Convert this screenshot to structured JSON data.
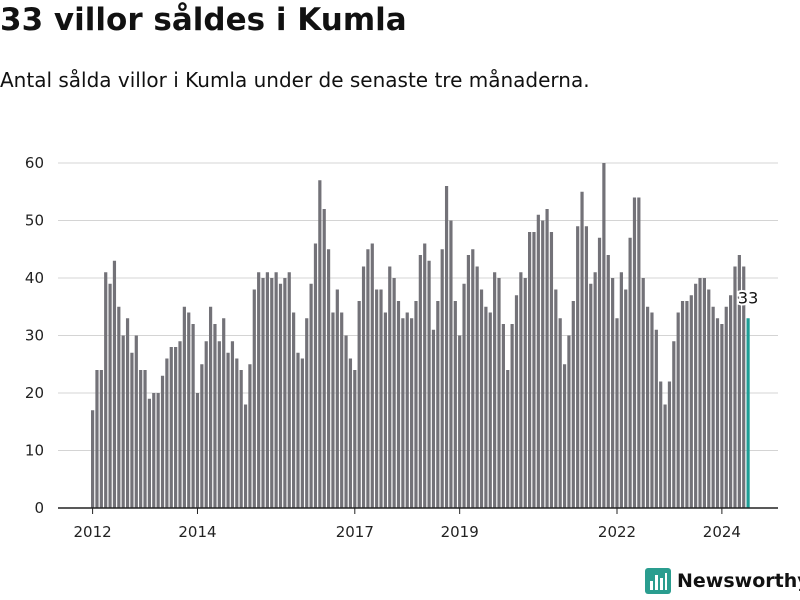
{
  "title": "33 villor såldes i Kumla",
  "subtitle": "Antal sålda villor i Kumla under de senaste tre månaderna.",
  "brand": {
    "name": "Newsworthy",
    "icon": "newsworthy-logo-icon",
    "color": "#2a9d8f"
  },
  "colors": {
    "bar": "#737278",
    "highlight": "#1f9e96",
    "grid": "#d4d4d4",
    "axis": "#222222"
  },
  "chart_data": {
    "type": "bar",
    "x_start": "2012-01",
    "interval": "month",
    "values": [
      17,
      24,
      24,
      41,
      39,
      43,
      35,
      30,
      33,
      27,
      30,
      24,
      24,
      19,
      20,
      20,
      23,
      26,
      28,
      28,
      29,
      35,
      34,
      32,
      20,
      25,
      29,
      35,
      32,
      29,
      33,
      27,
      29,
      26,
      24,
      18,
      25,
      38,
      41,
      40,
      41,
      40,
      41,
      39,
      40,
      41,
      34,
      27,
      26,
      33,
      39,
      46,
      57,
      52,
      45,
      34,
      38,
      34,
      30,
      26,
      24,
      36,
      42,
      45,
      46,
      38,
      38,
      34,
      42,
      40,
      36,
      33,
      34,
      33,
      36,
      44,
      46,
      43,
      31,
      36,
      45,
      56,
      50,
      36,
      30,
      39,
      44,
      45,
      42,
      38,
      35,
      34,
      41,
      40,
      32,
      24,
      32,
      37,
      41,
      40,
      48,
      48,
      51,
      50,
      52,
      48,
      38,
      33,
      25,
      30,
      36,
      49,
      55,
      49,
      39,
      41,
      47,
      60,
      44,
      40,
      33,
      41,
      38,
      47,
      54,
      54,
      40,
      35,
      34,
      31,
      22,
      18,
      22,
      29,
      34,
      36,
      36,
      37,
      39,
      40,
      40,
      38,
      35,
      33,
      32,
      35,
      37,
      42,
      44,
      42,
      33
    ],
    "highlight_last": true,
    "highlight_label": "33",
    "ylim": [
      0,
      60
    ],
    "yticks": [
      0,
      10,
      20,
      30,
      40,
      50,
      60
    ],
    "xticks": [
      {
        "label": "2012",
        "index": 0
      },
      {
        "label": "2014",
        "index": 24
      },
      {
        "label": "2017",
        "index": 60
      },
      {
        "label": "2019",
        "index": 84
      },
      {
        "label": "2022",
        "index": 120
      },
      {
        "label": "2024",
        "index": 144
      }
    ],
    "grid": true,
    "legend": "none"
  }
}
